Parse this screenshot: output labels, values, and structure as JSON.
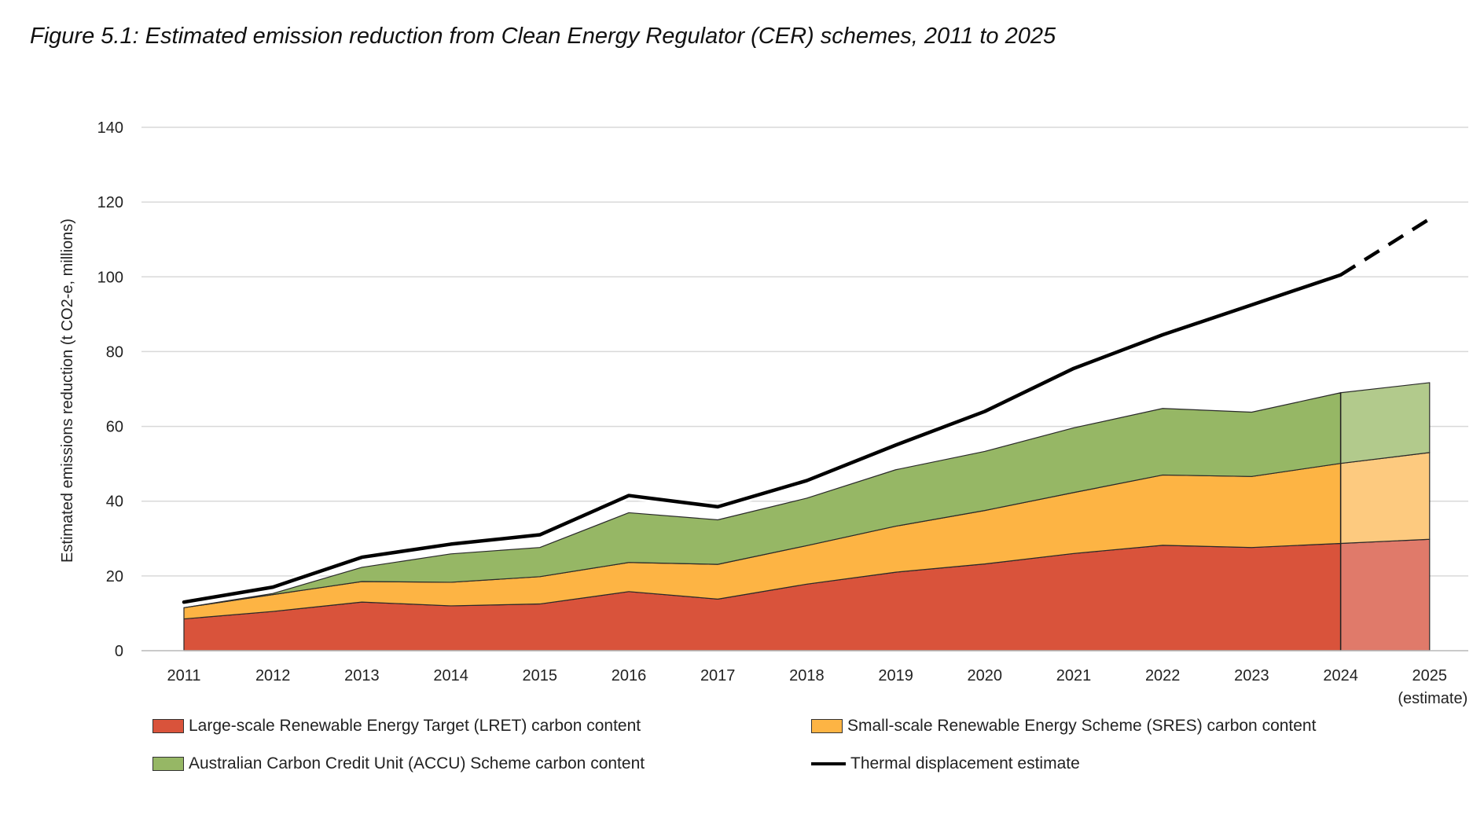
{
  "title": "Figure 5.1: Estimated emission reduction from Clean Energy Regulator (CER) schemes, 2011 to 2025",
  "colors": {
    "lret": "#d9533b",
    "lret_estimate": "#e07a6a",
    "sres": "#fdb444",
    "sres_estimate": "#fdca7f",
    "accu": "#96b765",
    "accu_estimate": "#b2ca8c",
    "thermal": "#000000",
    "grid": "#d9d9d9"
  },
  "chart_data": {
    "type": "area",
    "categories": [
      "2011",
      "2012",
      "2013",
      "2014",
      "2015",
      "2016",
      "2017",
      "2018",
      "2019",
      "2020",
      "2021",
      "2022",
      "2023",
      "2024",
      "2025"
    ],
    "category_sublabels": [
      "",
      "",
      "",
      "",
      "",
      "",
      "",
      "",
      "",
      "",
      "",
      "",
      "",
      "",
      "(estimate)"
    ],
    "ylabel": "Estimated emissions reduction  (t CO2-e, millions)",
    "xlabel": "",
    "ylim": [
      0,
      140
    ],
    "yticks": [
      0,
      20,
      40,
      60,
      80,
      100,
      120,
      140
    ],
    "stacked": true,
    "grid": true,
    "legend_position": "bottom",
    "estimate_from": "2024",
    "series": [
      {
        "name": "Large-scale Renewable Energy Target (LRET) carbon content",
        "kind": "area",
        "values": [
          8.5,
          10.5,
          13,
          12,
          12.5,
          15.8,
          13.8,
          17.8,
          21,
          23.2,
          26,
          28.2,
          27.6,
          28.7,
          29.8
        ]
      },
      {
        "name": "Small-scale Renewable Energy Scheme (SRES) carbon content",
        "kind": "area",
        "values": [
          3,
          4.5,
          5.5,
          6.3,
          7.3,
          7.8,
          9.3,
          10.3,
          12.3,
          14.3,
          16.3,
          18.8,
          19,
          21.4,
          23.2
        ]
      },
      {
        "name": "Australian Carbon Credit Unit (ACCU) Scheme carbon content",
        "kind": "area",
        "values": [
          0,
          0.3,
          3.8,
          7.6,
          7.8,
          13.3,
          11.9,
          12.7,
          15.1,
          15.8,
          17.3,
          17.8,
          17.2,
          18.9,
          18.7
        ]
      },
      {
        "name": "Thermal displacement estimate",
        "kind": "line",
        "values": [
          13,
          17,
          25,
          28.5,
          31,
          41.5,
          38.5,
          45.5,
          55,
          64,
          75.5,
          84.5,
          92.5,
          100.5,
          115.5
        ]
      }
    ]
  }
}
